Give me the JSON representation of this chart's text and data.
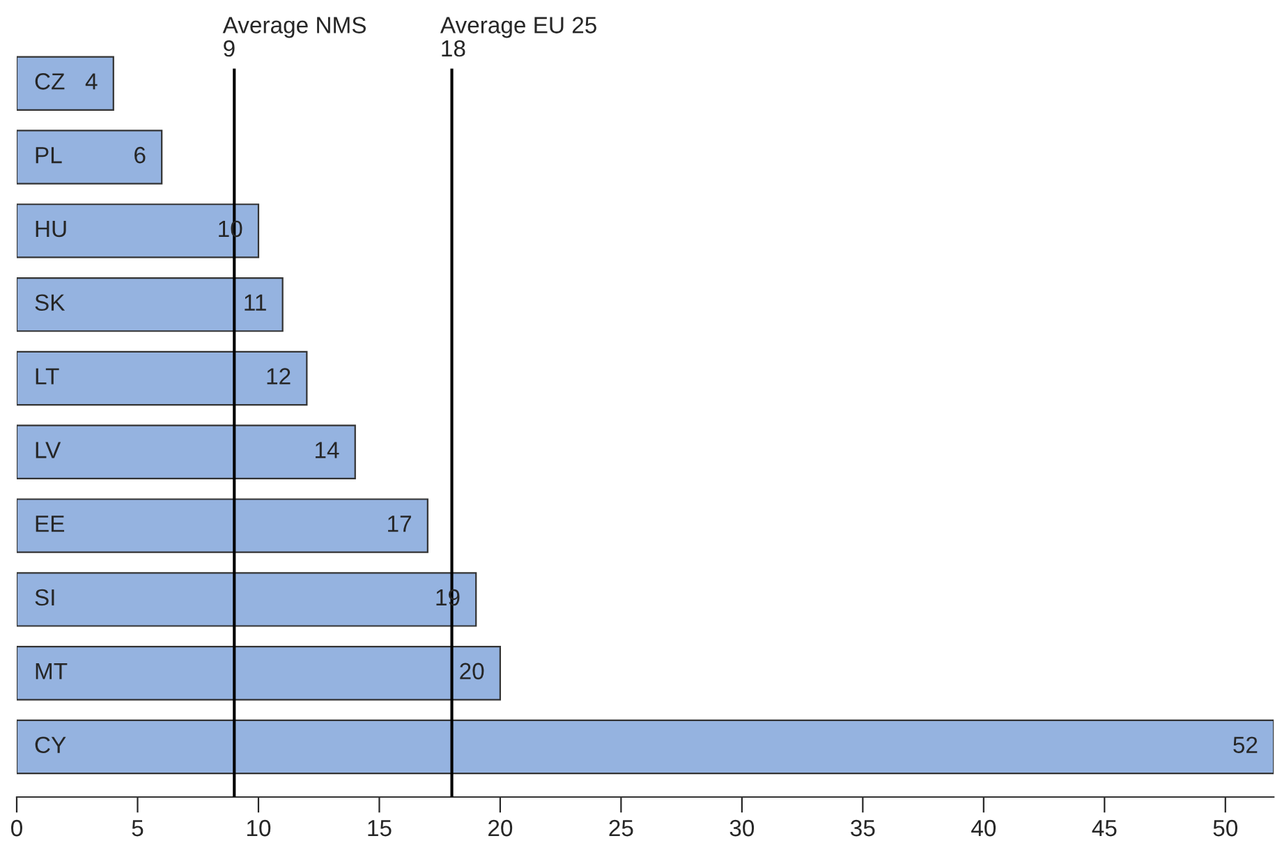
{
  "chart_data": {
    "type": "bar",
    "orientation": "horizontal",
    "categories": [
      "CZ",
      "PL",
      "HU",
      "SK",
      "LT",
      "LV",
      "EE",
      "SI",
      "MT",
      "CY"
    ],
    "values": [
      4,
      6,
      10,
      11,
      12,
      14,
      17,
      19,
      20,
      52
    ],
    "color": "#95b3e0",
    "data_labels": true,
    "xlim": [
      0,
      52
    ],
    "xticks": [
      0,
      5,
      10,
      15,
      20,
      25,
      30,
      35,
      40,
      45,
      50
    ],
    "ref_lines": [
      {
        "axis": "x",
        "value": 9,
        "label": "Average NMS\n9"
      },
      {
        "axis": "x",
        "value": 18,
        "label": "Average EU 25\n18"
      }
    ],
    "grid": false,
    "legend": false
  }
}
